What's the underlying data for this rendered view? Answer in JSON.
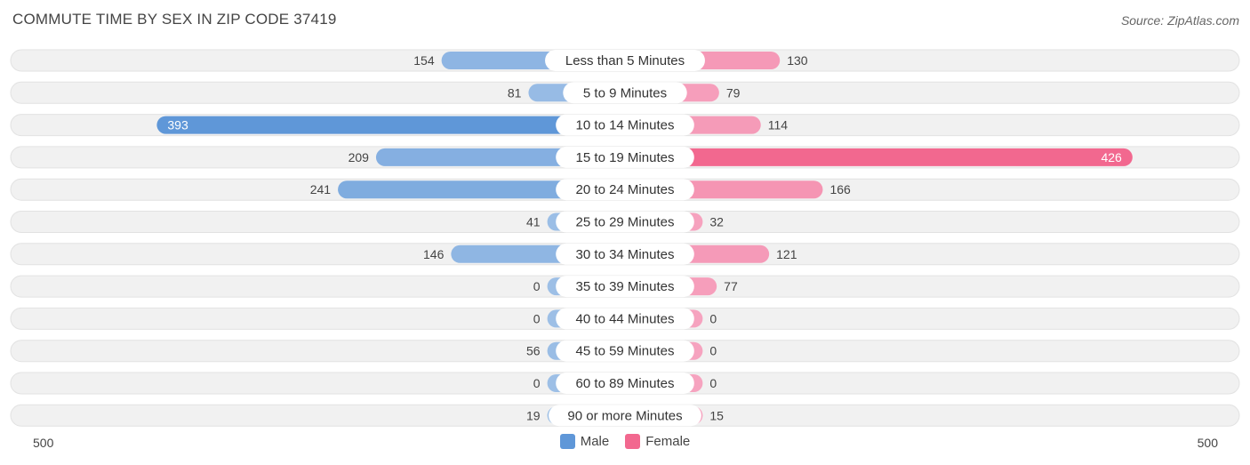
{
  "title": "COMMUTE TIME BY SEX IN ZIP CODE 37419",
  "source": "Source: ZipAtlas.com",
  "colors": {
    "male": "#9dbfe6",
    "male_strong": "#5f97d8",
    "female": "#f6a3bf",
    "female_strong": "#f2688f",
    "row_bg": "#f1f1f1"
  },
  "chart_data": {
    "type": "bar",
    "orientation": "horizontal-diverging",
    "categories": [
      "Less than 5 Minutes",
      "5 to 9 Minutes",
      "10 to 14 Minutes",
      "15 to 19 Minutes",
      "20 to 24 Minutes",
      "25 to 29 Minutes",
      "30 to 34 Minutes",
      "35 to 39 Minutes",
      "40 to 44 Minutes",
      "45 to 59 Minutes",
      "60 to 89 Minutes",
      "90 or more Minutes"
    ],
    "series": [
      {
        "name": "Male",
        "values": [
          154,
          81,
          393,
          209,
          241,
          41,
          146,
          0,
          0,
          56,
          0,
          19
        ]
      },
      {
        "name": "Female",
        "values": [
          130,
          79,
          114,
          426,
          166,
          32,
          121,
          77,
          0,
          0,
          0,
          15
        ]
      }
    ],
    "axis_max": 500,
    "axis_left_label": "500",
    "axis_right_label": "500",
    "legend_position": "bottom-center"
  },
  "legend": {
    "male": "Male",
    "female": "Female"
  }
}
